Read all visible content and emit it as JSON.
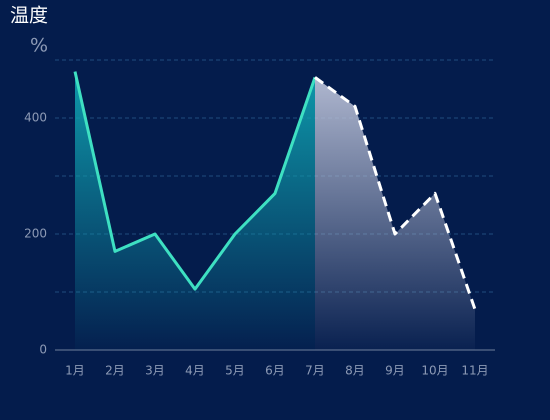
{
  "chart_data": {
    "type": "line",
    "title": "温度",
    "y_label": "%",
    "categories": [
      "1月",
      "2月",
      "3月",
      "4月",
      "5月",
      "6月",
      "7月",
      "8月",
      "9月",
      "10月",
      "11月"
    ],
    "series": [
      {
        "color": "#3ee0c2",
        "dashed": false,
        "area_color": "#0fa0b0",
        "values": [
          480,
          170,
          200,
          105,
          200,
          270,
          470,
          null,
          null,
          null,
          null
        ]
      },
      {
        "color": "#ffffff",
        "dashed": true,
        "area_color": "#b8bfd6",
        "values": [
          null,
          null,
          null,
          null,
          null,
          null,
          470,
          420,
          200,
          270,
          70
        ]
      }
    ],
    "ylim": [
      0,
      500
    ],
    "yticks": [
      0,
      100,
      200,
      300,
      400,
      500
    ],
    "ytick_label_every": 2,
    "grid": true
  }
}
